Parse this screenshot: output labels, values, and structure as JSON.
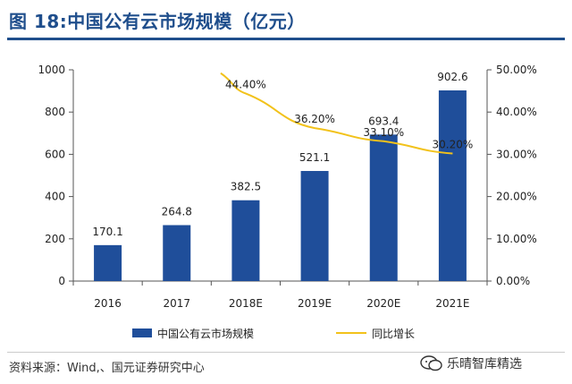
{
  "title": "图 18:中国公有云市场规模（亿元）",
  "source": "资料来源：Wind,、国元证券研究中心",
  "watermark": "乐晴智库精选",
  "colors": {
    "bar": "#1f4e9a",
    "line": "#f2c21b",
    "title": "#1f4e8c"
  },
  "chart_data": {
    "type": "bar",
    "title": "中国公有云市场规模（亿元）",
    "categories": [
      "2016",
      "2017",
      "2018E",
      "2019E",
      "2020E",
      "2021E"
    ],
    "series": [
      {
        "name": "中国公有云市场规模",
        "type": "bar",
        "axis": "left",
        "values": [
          170.1,
          264.8,
          382.5,
          521.1,
          693.4,
          902.6
        ],
        "labels": [
          "170.1",
          "264.8",
          "382.5",
          "521.1",
          "693.4",
          "902.6"
        ]
      },
      {
        "name": "同比增长",
        "type": "line",
        "axis": "right",
        "values": [
          null,
          null,
          44.4,
          36.2,
          33.1,
          30.2
        ],
        "labels": [
          "",
          "",
          "44.40%",
          "36.20%",
          "33.10%",
          "30.20%"
        ]
      }
    ],
    "ylim": [
      0,
      1000
    ],
    "yticks": [
      "0",
      "200",
      "400",
      "600",
      "800",
      "1000"
    ],
    "y2lim": [
      0,
      50
    ],
    "y2ticks": [
      "0.00%",
      "10.00%",
      "20.00%",
      "30.00%",
      "40.00%",
      "50.00%"
    ],
    "legend": [
      "中国公有云市场规模",
      "同比增长"
    ],
    "legend_position": "bottom",
    "grid": false
  }
}
